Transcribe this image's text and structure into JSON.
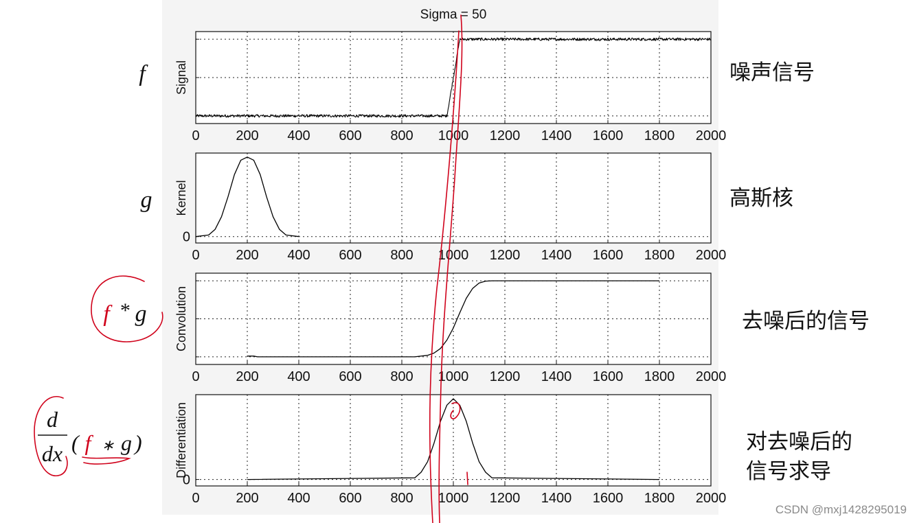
{
  "title": "Sigma = 50",
  "watermark": "CSDN @mxj1428295019",
  "chart_data": [
    {
      "type": "line",
      "id": "signal",
      "ylabel": "Signal",
      "xlim": [
        0,
        2000
      ],
      "x_ticks": [
        "0",
        "200",
        "400",
        "600",
        "800",
        "1000",
        "1200",
        "1400",
        "1600",
        "1800",
        "2000"
      ],
      "y_range": [
        -0.1,
        1.1
      ],
      "y_grid": [
        0,
        0.5,
        1
      ],
      "y_tick_labels": [],
      "noise": 0.018,
      "series": [
        {
          "x": [
            0,
            975,
            1025,
            2000
          ],
          "y": [
            0,
            0,
            1,
            1
          ]
        }
      ]
    },
    {
      "type": "line",
      "id": "kernel",
      "ylabel": "Kernel",
      "xlim": [
        0,
        2000
      ],
      "x_ticks": [
        "0",
        "200",
        "400",
        "600",
        "800",
        "1000",
        "1200",
        "1400",
        "1600",
        "1800",
        "2000"
      ],
      "y_range": [
        -0.08,
        1.05
      ],
      "y_grid": [
        0
      ],
      "y_tick_labels": [
        "0"
      ],
      "series": [
        {
          "x": [
            0,
            50,
            75,
            100,
            125,
            150,
            175,
            200,
            225,
            250,
            275,
            300,
            325,
            350,
            400
          ],
          "y": [
            0,
            0.02,
            0.09,
            0.25,
            0.5,
            0.78,
            0.96,
            1,
            0.96,
            0.78,
            0.5,
            0.25,
            0.09,
            0.02,
            0
          ]
        }
      ]
    },
    {
      "type": "line",
      "id": "convolution",
      "ylabel": "Convolution",
      "xlim": [
        0,
        2000
      ],
      "x_ticks": [
        "0",
        "200",
        "400",
        "600",
        "800",
        "1000",
        "1200",
        "1400",
        "1600",
        "1800",
        "2000"
      ],
      "y_range": [
        -0.1,
        1.1
      ],
      "y_grid": [
        0,
        0.5,
        1
      ],
      "y_tick_labels": [],
      "series": [
        {
          "x": [
            200,
            225,
            240,
            850,
            900,
            925,
            950,
            975,
            1000,
            1025,
            1050,
            1075,
            1100,
            1125,
            1150,
            1800
          ],
          "y": [
            0.01,
            0.01,
            0,
            0,
            0.02,
            0.05,
            0.11,
            0.22,
            0.38,
            0.58,
            0.77,
            0.9,
            0.97,
            0.995,
            1,
            1
          ]
        }
      ]
    },
    {
      "type": "line",
      "id": "differentiation",
      "ylabel": "Differentiation",
      "xlim": [
        0,
        2000
      ],
      "x_ticks": [
        "0",
        "200",
        "400",
        "600",
        "800",
        "1000",
        "1200",
        "1400",
        "1600",
        "1800",
        "2000"
      ],
      "y_range": [
        -0.08,
        1.05
      ],
      "y_grid": [
        0
      ],
      "y_tick_labels": [
        "0"
      ],
      "series": [
        {
          "x": [
            200,
            850,
            875,
            900,
            925,
            950,
            975,
            1000,
            1025,
            1050,
            1075,
            1100,
            1125,
            1150,
            1800
          ],
          "y": [
            0,
            0.02,
            0.09,
            0.22,
            0.45,
            0.72,
            0.92,
            1,
            0.92,
            0.72,
            0.45,
            0.22,
            0.09,
            0.02,
            0
          ]
        }
      ]
    }
  ],
  "left_labels": {
    "f": "f",
    "g": "g",
    "conv_f": "f",
    "conv_star": "*",
    "conv_g": "g",
    "deriv_num": "d",
    "deriv_den": "dx",
    "deriv_open": "(",
    "deriv_f": "f",
    "deriv_star": "∗",
    "deriv_g": "g",
    "deriv_close": ")"
  },
  "right_notes": {
    "signal": "噪声信号",
    "kernel": "高斯核",
    "convolution": "去噪后的信号",
    "differentiation_line1": "对去噪后的",
    "differentiation_line2": "信号求导"
  },
  "annotation_color": "#d0021b"
}
